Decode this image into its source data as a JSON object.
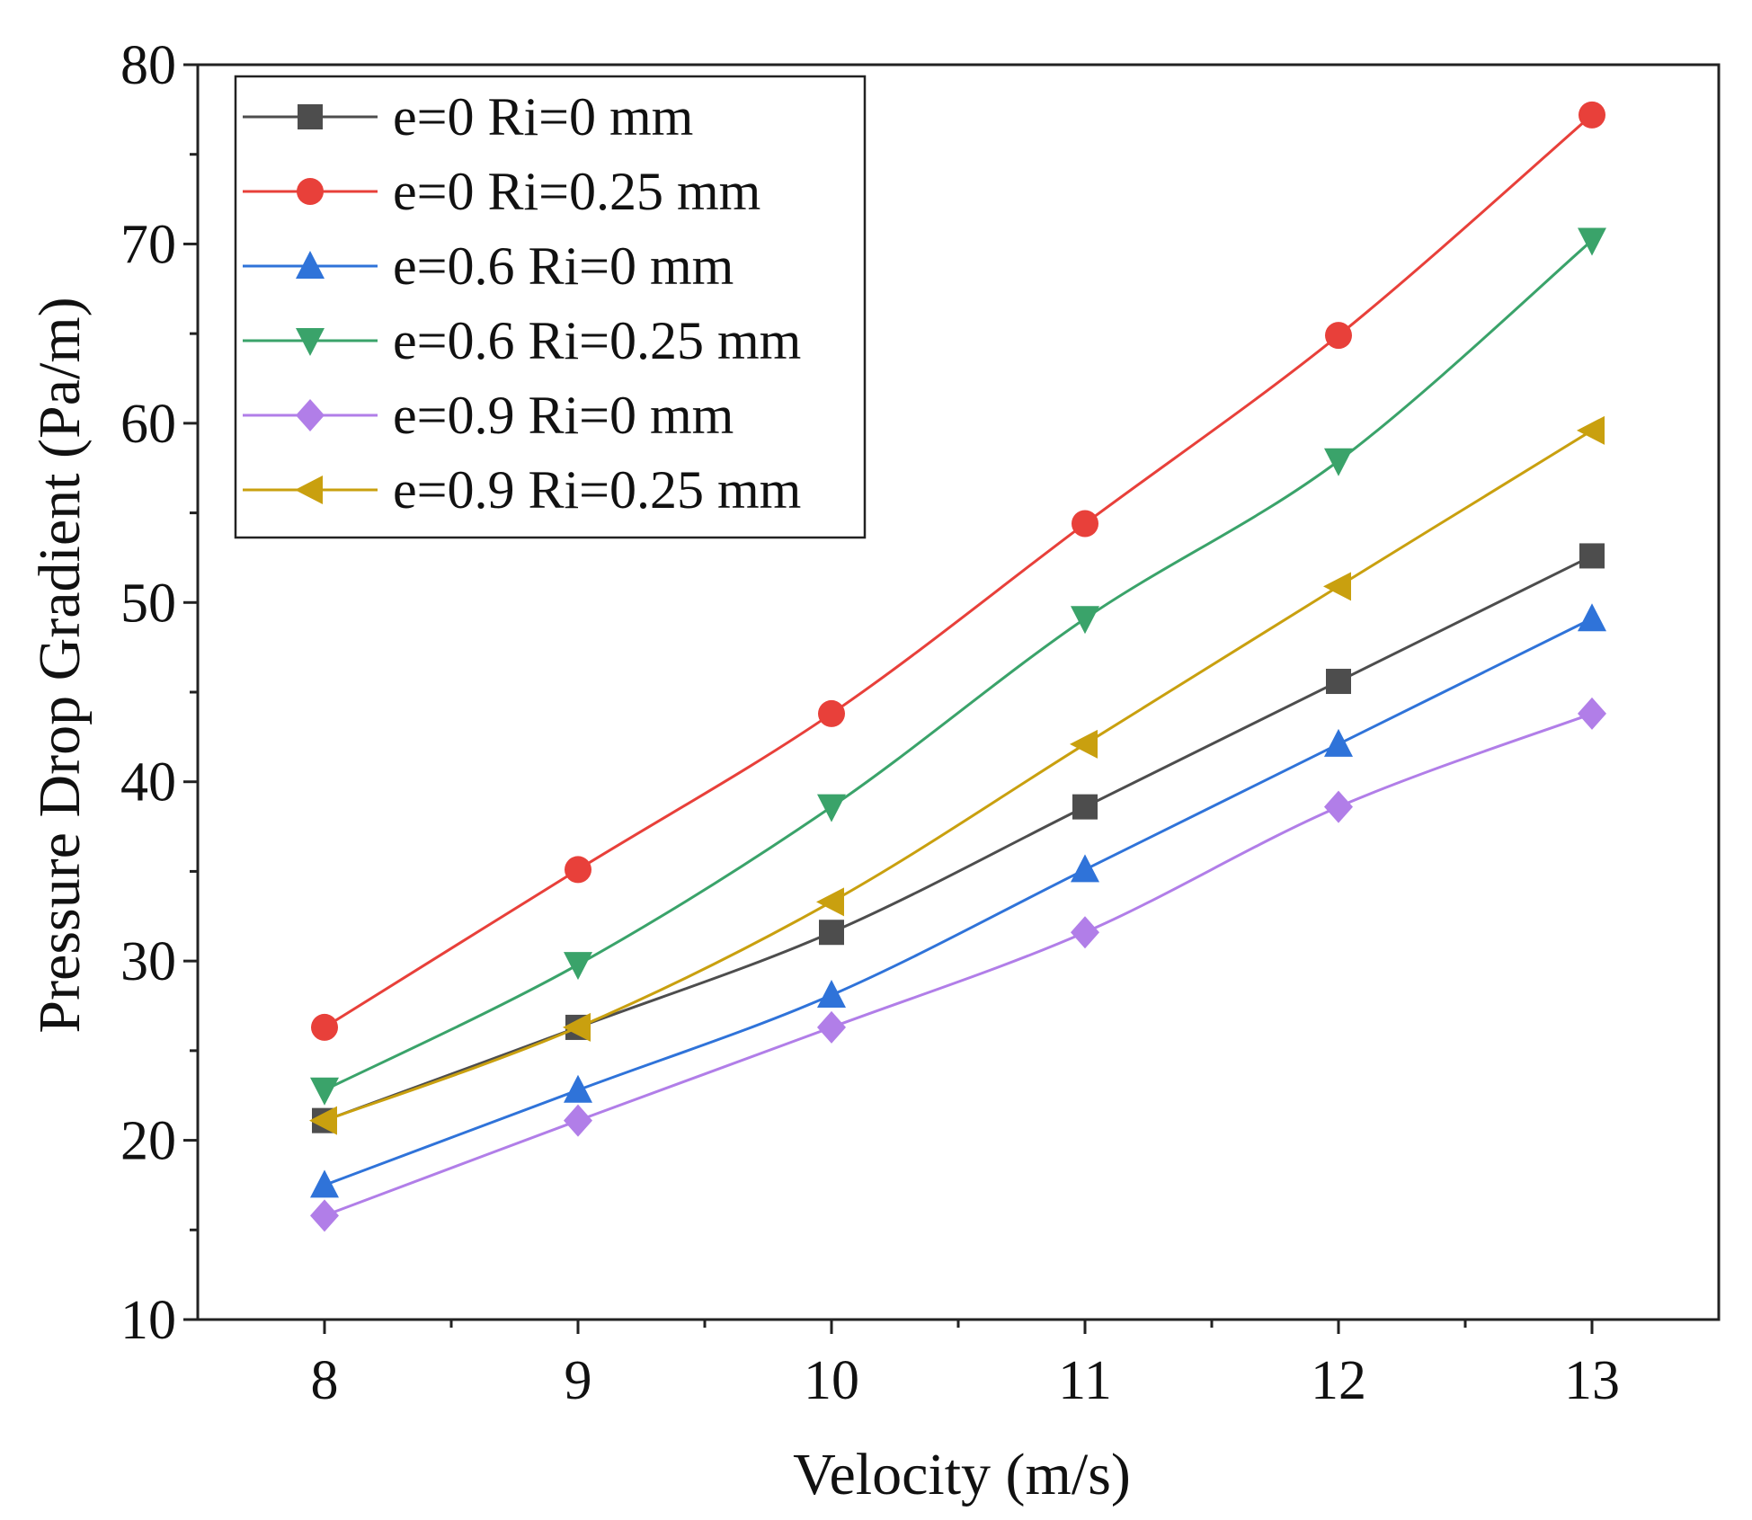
{
  "chart_data": {
    "type": "line",
    "title": "",
    "xlabel": "Velocity (m/s)",
    "ylabel": "Pressure Drop Gradient (Pa/m)",
    "x": [
      8,
      9,
      10,
      11,
      12,
      13
    ],
    "xlim": [
      7.5,
      13.5
    ],
    "ylim": [
      10,
      80
    ],
    "xticks": [
      "8",
      "9",
      "10",
      "11",
      "12",
      "13"
    ],
    "yticks": [
      "10",
      "20",
      "30",
      "40",
      "50",
      "60",
      "70",
      "80"
    ],
    "legend_position": "top-left",
    "grid": false,
    "series": [
      {
        "name": "e=0 Ri=0 mm",
        "color": "#4d4d4d",
        "marker": "square",
        "values": [
          21.1,
          26.3,
          31.6,
          38.6,
          45.6,
          52.6
        ]
      },
      {
        "name": "e=0 Ri=0.25 mm",
        "color": "#e8403a",
        "marker": "circle",
        "values": [
          26.3,
          35.1,
          43.8,
          54.4,
          64.9,
          77.2
        ]
      },
      {
        "name": "e=0.6 Ri=0 mm",
        "color": "#2f73d9",
        "marker": "triangle-up",
        "values": [
          17.5,
          22.8,
          28.1,
          35.1,
          42.1,
          49.1
        ]
      },
      {
        "name": "e=0.6 Ri=0.25 mm",
        "color": "#3aa36a",
        "marker": "triangle-down",
        "values": [
          22.8,
          29.8,
          38.6,
          49.1,
          57.9,
          70.2
        ]
      },
      {
        "name": "e=0.9 Ri=0 mm",
        "color": "#b17ee8",
        "marker": "diamond",
        "values": [
          15.8,
          21.1,
          26.3,
          31.6,
          38.6,
          43.8
        ]
      },
      {
        "name": "e=0.9 Ri=0.25 mm",
        "color": "#c9a00f",
        "marker": "triangle-left",
        "values": [
          21.1,
          26.3,
          33.3,
          42.1,
          50.9,
          59.6
        ]
      }
    ]
  }
}
